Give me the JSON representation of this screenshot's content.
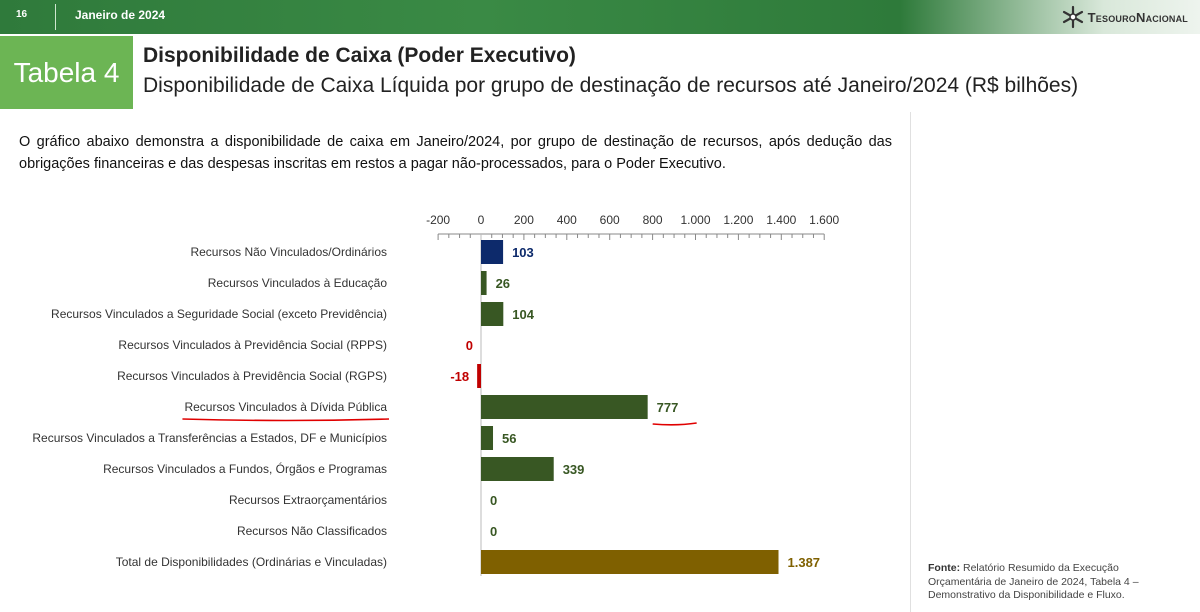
{
  "header": {
    "page_number": "16",
    "date": "Janeiro de 2024",
    "brand": "TesouroNacional"
  },
  "table_tag": "Tabela 4",
  "title": "Disponibilidade de Caixa (Poder Executivo)",
  "subtitle": "Disponibilidade de Caixa Líquida por grupo de destinação de recursos até Janeiro/2024 (R$ bilhões)",
  "intro": "O gráfico abaixo demonstra a disponibilidade de caixa em Janeiro/2024, por grupo de destinação de recursos, após dedução das obrigações financeiras e das despesas inscritas em restos a pagar não-processados, para o Poder Executivo.",
  "source": {
    "label": "Fonte:",
    "text": "Relatório Resumido da Execução Orçamentária de Janeiro de 2024, Tabela 4 – Demonstrativo da Disponibilidade e Fluxo."
  },
  "colors": {
    "brand_green": "#6cb554",
    "navy": "#0d2a6b",
    "dark_green": "#385723",
    "red": "#c00000",
    "gold": "#7f6000",
    "annotation_red": "#e00000"
  },
  "chart_data": {
    "type": "bar",
    "orientation": "horizontal",
    "xlim": [
      -200,
      1600
    ],
    "ticks": [
      {
        "value": -200,
        "label": "-200"
      },
      {
        "value": 0,
        "label": "0"
      },
      {
        "value": 200,
        "label": "200"
      },
      {
        "value": 400,
        "label": "400"
      },
      {
        "value": 600,
        "label": "600"
      },
      {
        "value": 800,
        "label": "800"
      },
      {
        "value": 1000,
        "label": "1.000"
      },
      {
        "value": 1200,
        "label": "1.200"
      },
      {
        "value": 1400,
        "label": "1.400"
      },
      {
        "value": 1600,
        "label": "1.600"
      }
    ],
    "axis_position": "top",
    "grid": false,
    "bars": [
      {
        "category": "Recursos Não Vinculados/Ordinários",
        "value": 103,
        "label": "103",
        "color": "#0d2a6b"
      },
      {
        "category": "Recursos Vinculados à Educação",
        "value": 26,
        "label": "26",
        "color": "#385723"
      },
      {
        "category": "Recursos Vinculados a Seguridade Social (exceto Previdência)",
        "value": 104,
        "label": "104",
        "color": "#385723"
      },
      {
        "category": "Recursos Vinculados à Previdência Social (RPPS)",
        "value": 0,
        "label": "0",
        "color": "#c00000"
      },
      {
        "category": "Recursos Vinculados à Previdência Social (RGPS)",
        "value": -18,
        "label": "-18",
        "color": "#c00000"
      },
      {
        "category": "Recursos Vinculados à Dívida Pública",
        "value": 777,
        "label": "777",
        "color": "#385723",
        "highlighted": true
      },
      {
        "category": "Recursos Vinculados a Transferências a Estados, DF e Municípios",
        "value": 56,
        "label": "56",
        "color": "#385723"
      },
      {
        "category": "Recursos Vinculados a Fundos, Órgãos e Programas",
        "value": 339,
        "label": "339",
        "color": "#385723"
      },
      {
        "category": "Recursos Extraorçamentários",
        "value": 0,
        "label": "0",
        "color": "#385723"
      },
      {
        "category": "Recursos Não Classificados",
        "value": 0,
        "label": "0",
        "color": "#385723"
      },
      {
        "category": "Total de Disponibilidades (Ordinárias e Vinculadas)",
        "value": 1387,
        "label": "1.387",
        "color": "#7f6000"
      }
    ]
  }
}
